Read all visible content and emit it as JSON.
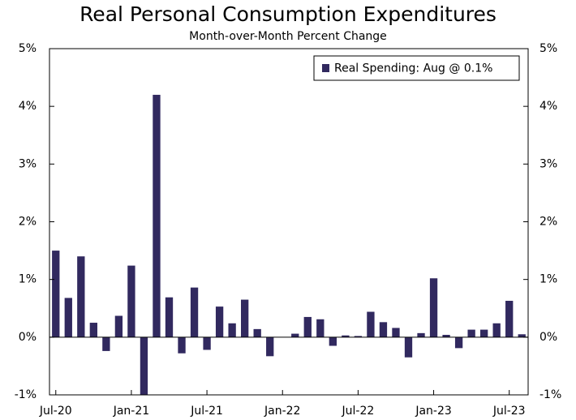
{
  "chart_data": {
    "type": "bar",
    "title": "Real Personal Consumption Expenditures",
    "subtitle": "Month-over-Month Percent Change",
    "categories": [
      "Jul-20",
      null,
      null,
      null,
      null,
      null,
      "Jan-21",
      null,
      null,
      null,
      null,
      null,
      "Jul-21",
      null,
      null,
      null,
      null,
      null,
      "Jan-22",
      null,
      null,
      null,
      null,
      null,
      "Jul-22",
      null,
      null,
      null,
      null,
      null,
      "Jan-23",
      null,
      null,
      null,
      null,
      null,
      "Jul-23",
      null
    ],
    "series": [
      {
        "name": "Real Spending: Aug @ 0.1%",
        "color": "#31295f",
        "values": [
          1.5,
          0.68,
          1.4,
          0.25,
          -0.24,
          0.37,
          1.24,
          -1.0,
          4.2,
          0.69,
          -0.28,
          0.86,
          -0.22,
          0.53,
          0.24,
          0.65,
          0.14,
          -0.33,
          0.0,
          0.06,
          0.35,
          0.31,
          -0.15,
          0.03,
          0.02,
          0.44,
          0.26,
          0.16,
          -0.35,
          0.07,
          1.02,
          0.04,
          -0.19,
          0.13,
          0.13,
          0.24,
          0.63,
          0.05
        ]
      }
    ],
    "ylim": [
      -1,
      5
    ],
    "yticks": [
      {
        "value": -1,
        "label": "-1%"
      },
      {
        "value": 0,
        "label": "0%"
      },
      {
        "value": 1,
        "label": "1%"
      },
      {
        "value": 2,
        "label": "2%"
      },
      {
        "value": 3,
        "label": "3%"
      },
      {
        "value": 4,
        "label": "4%"
      },
      {
        "value": 5,
        "label": "5%"
      }
    ],
    "y2lim": [
      -1,
      5
    ],
    "y2ticks": [
      {
        "value": -1,
        "label": "-1%"
      },
      {
        "value": 0,
        "label": "0%"
      },
      {
        "value": 1,
        "label": "1%"
      },
      {
        "value": 2,
        "label": "2%"
      },
      {
        "value": 3,
        "label": "3%"
      },
      {
        "value": 4,
        "label": "4%"
      },
      {
        "value": 5,
        "label": "5%"
      }
    ],
    "legend": "top-right",
    "grid": false
  }
}
